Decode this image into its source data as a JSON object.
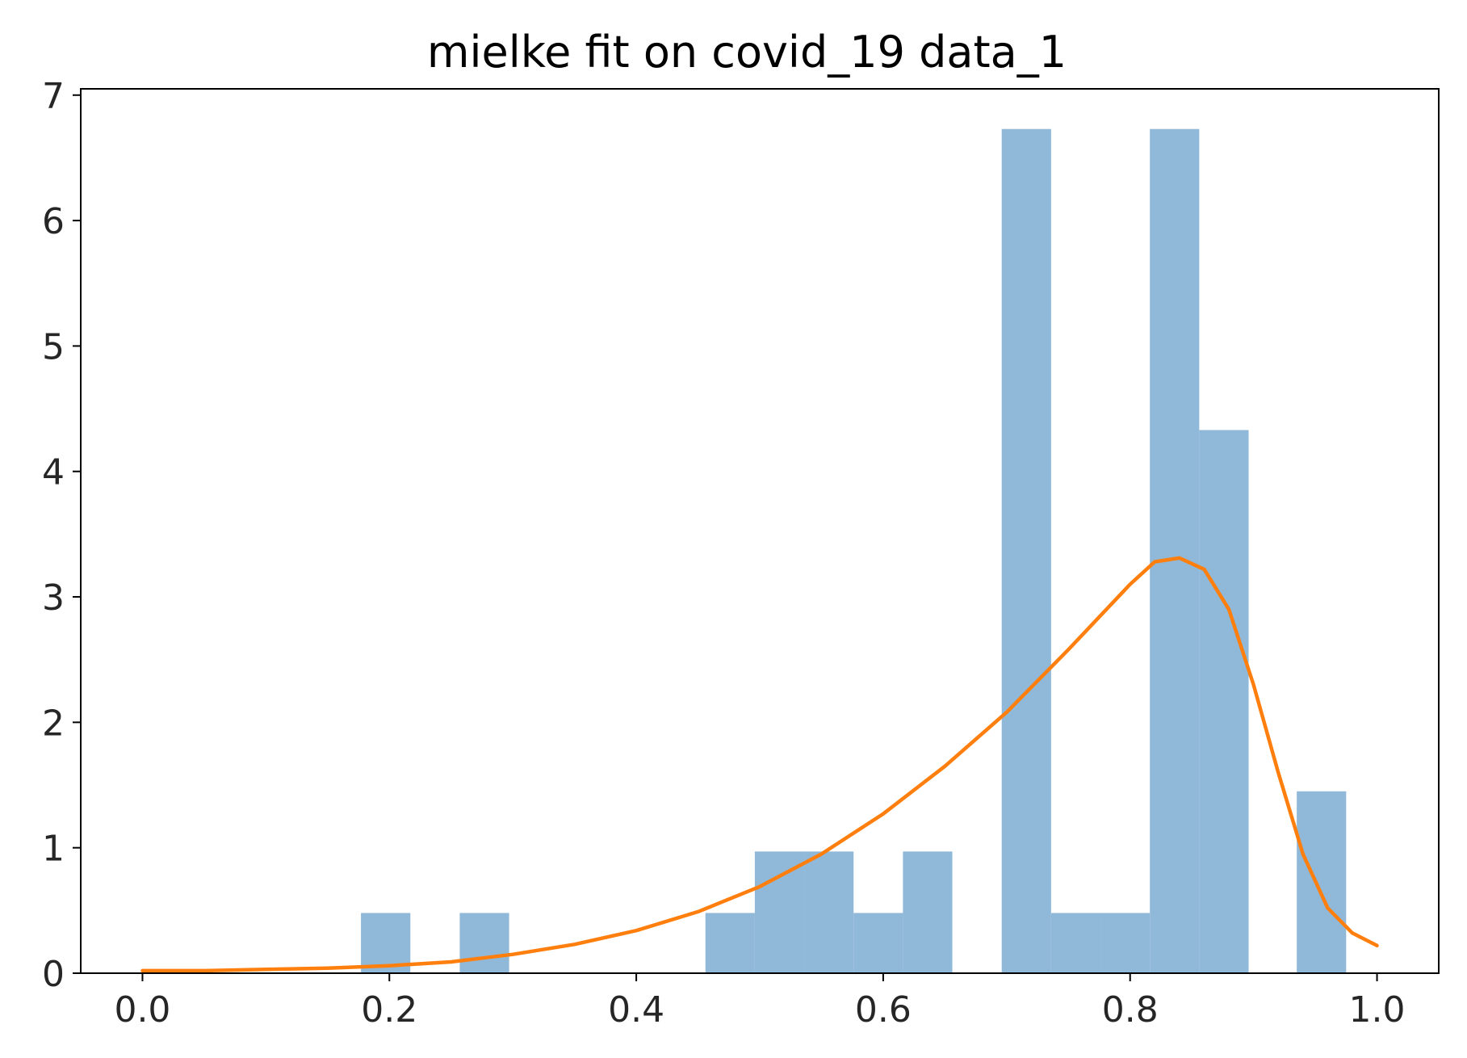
{
  "chart_data": {
    "type": "bar",
    "title": "mielke fit on covid_19 data_1",
    "xlabel": "",
    "ylabel": "",
    "xlim": [
      -0.05,
      1.05
    ],
    "ylim": [
      0,
      7.05
    ],
    "xticks": [
      0.0,
      0.2,
      0.4,
      0.6,
      0.8,
      1.0
    ],
    "xtick_labels": [
      "0.0",
      "0.2",
      "0.4",
      "0.6",
      "0.8",
      "1.0"
    ],
    "yticks": [
      0,
      1,
      2,
      3,
      4,
      5,
      6,
      7
    ],
    "ytick_labels": [
      "0",
      "1",
      "2",
      "3",
      "4",
      "5",
      "6",
      "7"
    ],
    "grid": false,
    "histogram": {
      "color": "#8fb8d9",
      "bins": [
        {
          "x0": 0.177,
          "x1": 0.217,
          "value": 0.48
        },
        {
          "x0": 0.257,
          "x1": 0.297,
          "value": 0.48
        },
        {
          "x0": 0.456,
          "x1": 0.496,
          "value": 0.48
        },
        {
          "x0": 0.496,
          "x1": 0.536,
          "value": 0.97
        },
        {
          "x0": 0.536,
          "x1": 0.576,
          "value": 0.97
        },
        {
          "x0": 0.576,
          "x1": 0.616,
          "value": 0.48
        },
        {
          "x0": 0.616,
          "x1": 0.656,
          "value": 0.97
        },
        {
          "x0": 0.696,
          "x1": 0.736,
          "value": 6.73
        },
        {
          "x0": 0.736,
          "x1": 0.776,
          "value": 0.48
        },
        {
          "x0": 0.776,
          "x1": 0.816,
          "value": 0.48
        },
        {
          "x0": 0.816,
          "x1": 0.856,
          "value": 6.73
        },
        {
          "x0": 0.856,
          "x1": 0.896,
          "value": 4.33
        },
        {
          "x0": 0.935,
          "x1": 0.975,
          "value": 1.45
        }
      ]
    },
    "fit_curve": {
      "color": "#ff7f0e",
      "x": [
        0.0,
        0.05,
        0.1,
        0.15,
        0.2,
        0.25,
        0.3,
        0.35,
        0.4,
        0.45,
        0.5,
        0.55,
        0.6,
        0.65,
        0.7,
        0.75,
        0.8,
        0.82,
        0.84,
        0.86,
        0.88,
        0.9,
        0.92,
        0.94,
        0.96,
        0.98,
        1.0
      ],
      "y": [
        0.02,
        0.02,
        0.03,
        0.04,
        0.06,
        0.09,
        0.15,
        0.23,
        0.34,
        0.49,
        0.69,
        0.95,
        1.27,
        1.65,
        2.08,
        2.58,
        3.1,
        3.28,
        3.31,
        3.22,
        2.9,
        2.3,
        1.6,
        0.95,
        0.52,
        0.32,
        0.22
      ]
    }
  }
}
